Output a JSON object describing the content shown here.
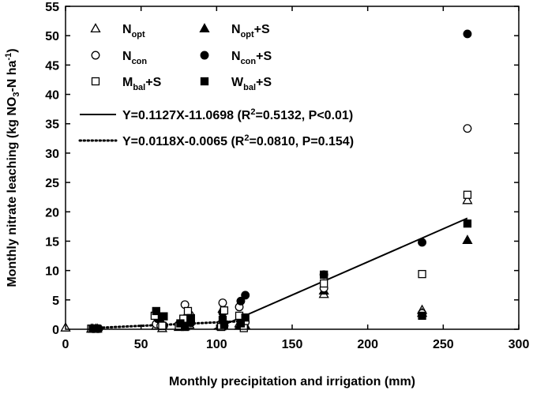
{
  "chart_data": {
    "type": "scatter",
    "xlabel": "Monthly precipitation and irrigation (mm)",
    "ylabel": {
      "prefix": "Monthly nitrate leaching (kg NO",
      "sub": "3",
      "middle": "-N ha",
      "sup": "-1",
      "suffix": ")"
    },
    "xlim": [
      0,
      300
    ],
    "ylim": [
      0,
      55
    ],
    "xticks": [
      "0",
      "50",
      "100",
      "150",
      "200",
      "250",
      "300"
    ],
    "yticks": [
      "0",
      "5",
      "10",
      "15",
      "20",
      "25",
      "30",
      "35",
      "40",
      "45",
      "50",
      "55"
    ],
    "series": [
      {
        "id": "nopt",
        "label": {
          "base": "N",
          "sub": "opt",
          "rest": ""
        },
        "marker": "triangle-open",
        "points": [
          [
            0,
            0.3
          ],
          [
            17,
            0.1
          ],
          [
            21,
            0.1
          ],
          [
            60,
            0.6
          ],
          [
            64,
            0.2
          ],
          [
            75,
            0.4
          ],
          [
            77,
            1.2
          ],
          [
            80,
            2.0
          ],
          [
            82,
            0.8
          ],
          [
            103,
            0.5
          ],
          [
            104,
            3.5
          ],
          [
            115,
            1.0
          ],
          [
            118,
            0.6
          ],
          [
            171,
            6.0
          ],
          [
            236,
            3.3
          ],
          [
            266,
            22.0
          ]
        ]
      },
      {
        "id": "nopt_s",
        "label": {
          "base": "N",
          "sub": "opt",
          "rest": "+S"
        },
        "marker": "triangle-filled",
        "points": [
          [
            18,
            0.1
          ],
          [
            20,
            0.1
          ],
          [
            60,
            2.5
          ],
          [
            64,
            1.1
          ],
          [
            76,
            0.6
          ],
          [
            79,
            0.5
          ],
          [
            81,
            1.2
          ],
          [
            104,
            1.6
          ],
          [
            115,
            0.6
          ],
          [
            119,
            0.7
          ],
          [
            171,
            6.6
          ],
          [
            236,
            2.8
          ],
          [
            266,
            15.2
          ]
        ]
      },
      {
        "id": "ncon",
        "label": {
          "base": "N",
          "sub": "con",
          "rest": ""
        },
        "marker": "circle-open",
        "points": [
          [
            18,
            0.1
          ],
          [
            21,
            0.1
          ],
          [
            60,
            0.9
          ],
          [
            63,
            0.6
          ],
          [
            75,
            0.8
          ],
          [
            79,
            4.2
          ],
          [
            82,
            2.5
          ],
          [
            103,
            0.9
          ],
          [
            104,
            4.5
          ],
          [
            115,
            3.8
          ],
          [
            119,
            1.2
          ],
          [
            171,
            7.0
          ],
          [
            236,
            2.7
          ],
          [
            266,
            34.2
          ]
        ]
      },
      {
        "id": "ncon_s",
        "label": {
          "base": "N",
          "sub": "con",
          "rest": "+S"
        },
        "marker": "circle-filled",
        "points": [
          [
            19,
            0.1
          ],
          [
            22,
            0.1
          ],
          [
            61,
            1.8
          ],
          [
            65,
            0.6
          ],
          [
            77,
            0.9
          ],
          [
            80,
            2.0
          ],
          [
            83,
            1.1
          ],
          [
            104,
            2.8
          ],
          [
            105,
            0.6
          ],
          [
            116,
            4.8
          ],
          [
            119,
            5.8
          ],
          [
            171,
            9.3
          ],
          [
            236,
            14.8
          ],
          [
            266,
            50.3
          ]
        ]
      },
      {
        "id": "mbal_s",
        "label": {
          "base": "M",
          "sub": "bal",
          "rest": "+S"
        },
        "marker": "square-open",
        "points": [
          [
            17,
            0.1
          ],
          [
            20,
            0.1
          ],
          [
            59,
            2.3
          ],
          [
            64,
            0.6
          ],
          [
            75,
            0.5
          ],
          [
            78,
            1.8
          ],
          [
            81,
            3.1
          ],
          [
            103,
            0.4
          ],
          [
            105,
            3.2
          ],
          [
            115,
            2.3
          ],
          [
            118,
            0.2
          ],
          [
            171,
            7.8
          ],
          [
            236,
            9.4
          ],
          [
            266,
            22.9
          ]
        ]
      },
      {
        "id": "wbal_s",
        "label": {
          "base": "W",
          "sub": "bal",
          "rest": "+S"
        },
        "marker": "square-filled",
        "points": [
          [
            18,
            0.1
          ],
          [
            21,
            0.1
          ],
          [
            60,
            3.1
          ],
          [
            65,
            2.2
          ],
          [
            76,
            1.0
          ],
          [
            79,
            0.4
          ],
          [
            83,
            1.9
          ],
          [
            104,
            1.6
          ],
          [
            105,
            0.8
          ],
          [
            116,
            1.0
          ],
          [
            119,
            2.0
          ],
          [
            171,
            9.3
          ],
          [
            236,
            2.3
          ],
          [
            266,
            18.0
          ]
        ]
      }
    ],
    "fits": [
      {
        "id": "fit_solid",
        "style": "solid",
        "slope": 0.1127,
        "intercept": -11.0698,
        "x_range": [
          98.2,
          266
        ],
        "eq_prefix": "Y=0.1127X-11.0698 (R",
        "eq_sup": "2",
        "eq_suffix": "=0.5132, P<0.01)"
      },
      {
        "id": "fit_dotted",
        "style": "dotted",
        "slope": 0.0118,
        "intercept": -0.0065,
        "x_range": [
          17,
          119
        ],
        "eq_prefix": "Y=0.0118X-0.0065 (R",
        "eq_sup": "2",
        "eq_suffix": "=0.0810, P=0.154)"
      }
    ]
  }
}
